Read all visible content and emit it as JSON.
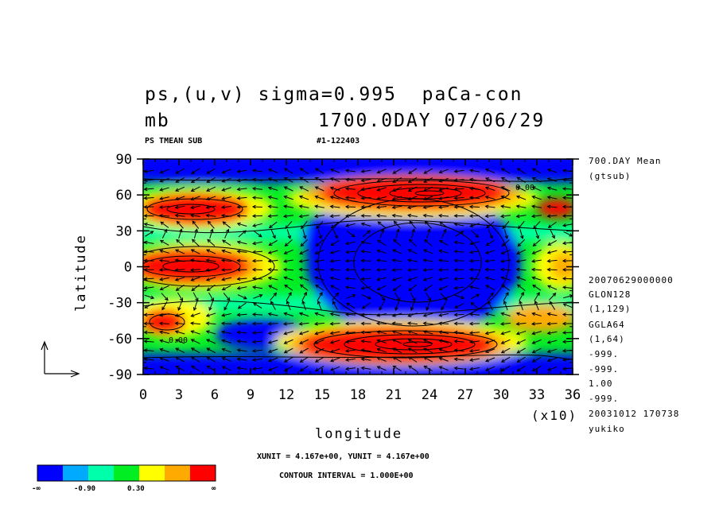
{
  "title": {
    "line1": "ps,(u,v) sigma=0.995  paCa-con",
    "line2_left": "mb",
    "line2_right": "1700.0DAY 07/06/29"
  },
  "subtitle_left": "PS TMEAN SUB",
  "subtitle_right": "#1-122403",
  "right_info": [
    "700.DAY Mean",
    "(gtsub)",
    "20070629000000",
    "GLON128",
    "(1,129)",
    "GGLA64",
    "(1,64)",
    "-999.",
    "-999.",
    "1.00",
    "-999.",
    "20031012 170738",
    "yukiko"
  ],
  "footer": {
    "units": "XUNIT = 4.167e+00, YUNIT = 4.167e+00",
    "contour": "CONTOUR INTERVAL = 1.000E+00"
  },
  "colorbar": {
    "colors": [
      "#0000ff",
      "#00aaff",
      "#00ffaa",
      "#00ee22",
      "#ffff00",
      "#ffaa00",
      "#ff0000"
    ],
    "labels": [
      "-∞",
      "-0.90",
      "0.30",
      "∞"
    ]
  },
  "chart_data": {
    "type": "heatmap",
    "title": "ps,(u,v) sigma=0.995  paCa-con",
    "xlabel": "longitude",
    "ylabel": "latitude",
    "x_multiplier": "(x10)",
    "xlim": [
      0,
      36
    ],
    "ylim": [
      -90,
      90
    ],
    "xticks": [
      0,
      3,
      6,
      9,
      12,
      15,
      18,
      21,
      24,
      27,
      30,
      33,
      36
    ],
    "yticks": [
      90,
      60,
      30,
      0,
      -30,
      -60,
      -90
    ],
    "contour_label": "0.00",
    "levels": [
      -0.9,
      -0.3,
      0.3,
      0.9,
      1.5
    ],
    "features": [
      {
        "name": "north-high",
        "lon_range": [
          14,
          34
        ],
        "lat_range": [
          52,
          76
        ],
        "value": "high"
      },
      {
        "name": "south-high",
        "lon_range": [
          12,
          31
        ],
        "lat_range": [
          -76,
          -48
        ],
        "value": "high"
      },
      {
        "name": "equator-west-high",
        "lon_range": [
          0,
          12
        ],
        "lat_range": [
          -8,
          12
        ],
        "value": "high"
      },
      {
        "name": "west-60n-high",
        "lon_range": [
          0,
          11
        ],
        "lat_range": [
          42,
          62
        ],
        "value": "high"
      },
      {
        "name": "west-40s-high",
        "lon_range": [
          0,
          5
        ],
        "lat_range": [
          -55,
          -33
        ],
        "value": "high"
      },
      {
        "name": "east-equator-high",
        "lon_range": [
          32,
          36
        ],
        "lat_range": [
          -8,
          12
        ],
        "value": "medium"
      },
      {
        "name": "central-low",
        "lon_range": [
          13,
          30
        ],
        "lat_range": [
          -40,
          40
        ],
        "value": "low"
      }
    ]
  }
}
